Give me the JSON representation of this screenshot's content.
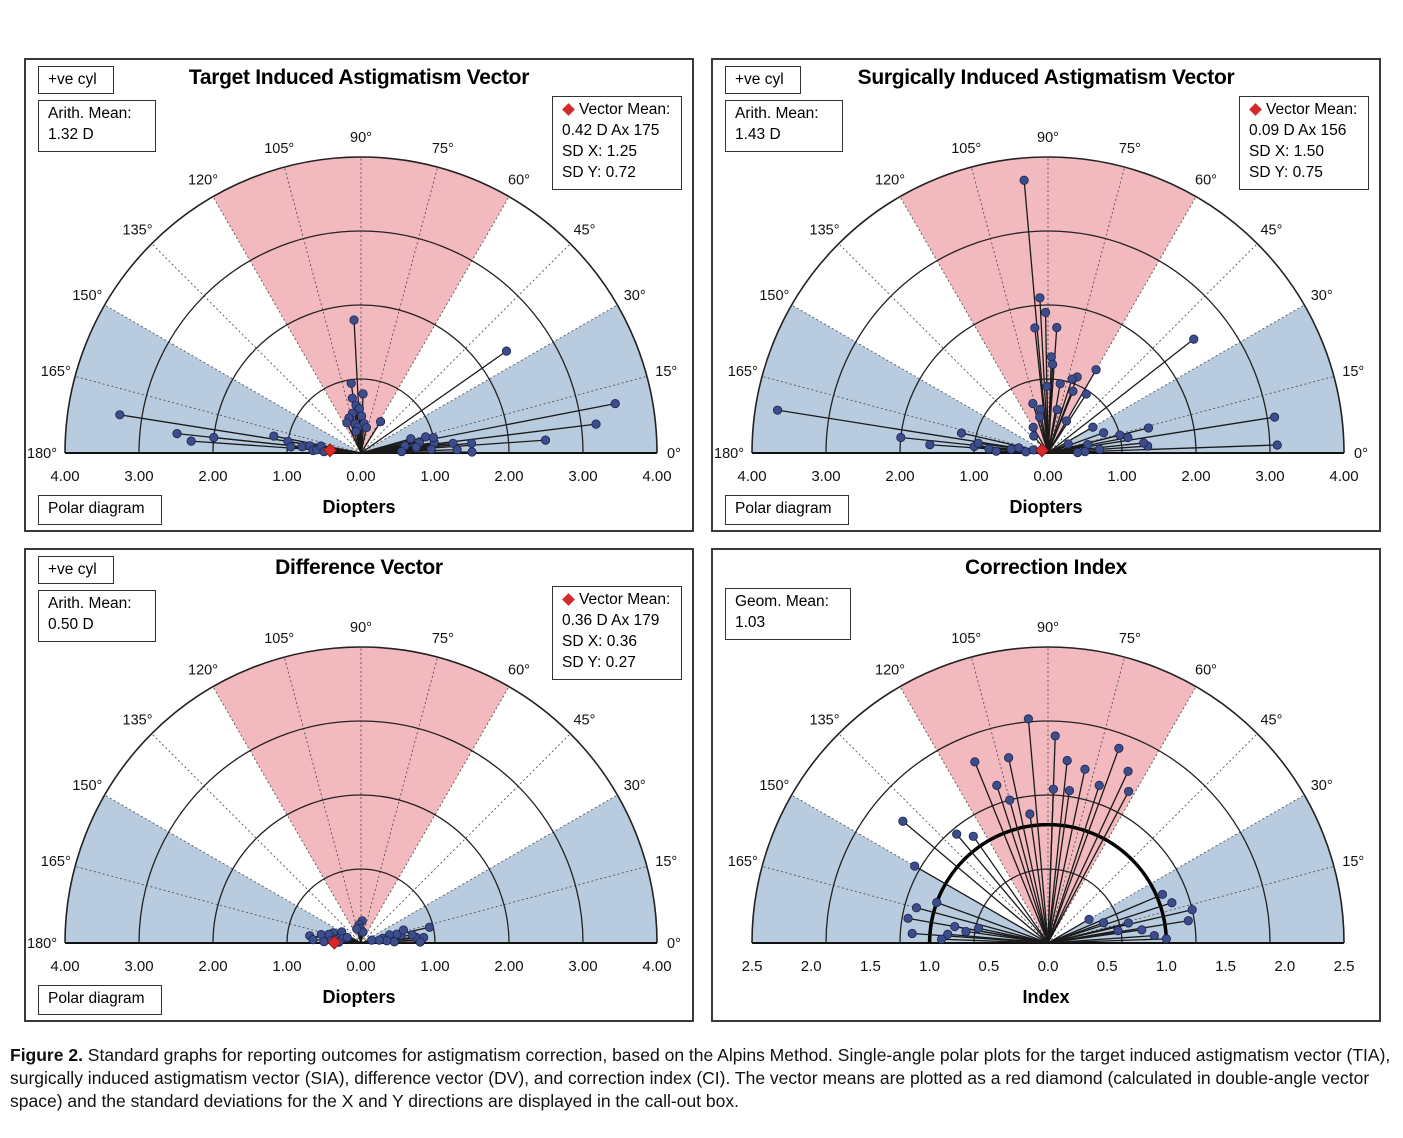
{
  "colors": {
    "red_sector": "#f2b9be",
    "blue_sector": "#b9cbdf",
    "point_fill": "#3d4d8c",
    "vector_mean": "#d42a2a"
  },
  "chart_data": [
    {
      "type": "polar",
      "title": "Target Induced Astigmatism Vector",
      "xlabel": "Diopters",
      "cyl_label": "+ve cyl",
      "footer_label": "Polar diagram",
      "arith_mean_label": "Arith. Mean:",
      "arith_mean_value": "1.32 D",
      "vector_mean": {
        "label": "Vector Mean:",
        "line1": "0.42 D Ax 175",
        "sd_x": "SD X: 1.25",
        "sd_y": "SD Y: 0.72",
        "magnitude": 0.42,
        "axis": 175
      },
      "angle_ticks": [
        "0°",
        "15°",
        "30°",
        "45°",
        "60°",
        "75°",
        "90°",
        "105°",
        "120°",
        "135°",
        "150°",
        "165°",
        "180°"
      ],
      "x_ticks": [
        "4.00",
        "3.00",
        "2.00",
        "1.00",
        "0.00",
        "1.00",
        "2.00",
        "3.00",
        "4.00"
      ],
      "rmax": 4,
      "red_sector": [
        60,
        120
      ],
      "blue_sectors": [
        [
          0,
          30
        ],
        [
          150,
          180
        ]
      ],
      "points": [
        [
          3.2,
          7
        ],
        [
          2.4,
          35
        ],
        [
          3.3,
          171
        ],
        [
          2.5,
          174
        ],
        [
          2.3,
          176
        ],
        [
          2.0,
          174
        ],
        [
          1.2,
          169
        ],
        [
          1.0,
          171
        ],
        [
          0.95,
          175
        ],
        [
          0.8,
          174
        ],
        [
          0.7,
          172
        ],
        [
          0.65,
          177
        ],
        [
          0.6,
          176
        ],
        [
          0.55,
          170
        ],
        [
          0.5,
          178
        ],
        [
          1.8,
          93
        ],
        [
          0.95,
          98
        ],
        [
          0.8,
          88
        ],
        [
          0.75,
          99
        ],
        [
          0.65,
          96
        ],
        [
          0.6,
          92
        ],
        [
          0.5,
          89
        ],
        [
          0.4,
          101
        ],
        [
          0.35,
          97
        ],
        [
          0.4,
          84
        ],
        [
          0.55,
          102
        ],
        [
          0.5,
          109
        ],
        [
          0.45,
          115
        ],
        [
          0.35,
          78
        ],
        [
          0.3,
          103
        ],
        [
          0.5,
          58
        ],
        [
          3.5,
          11
        ],
        [
          2.5,
          4
        ],
        [
          1.5,
          5
        ],
        [
          1.25,
          6
        ],
        [
          1.0,
          8
        ],
        [
          1.0,
          12
        ],
        [
          0.95,
          3
        ],
        [
          0.8,
          10
        ],
        [
          0.75,
          6
        ],
        [
          0.6,
          9
        ],
        [
          0.55,
          2
        ],
        [
          1.3,
          2
        ],
        [
          1.5,
          0.5
        ],
        [
          0.9,
          14
        ],
        [
          0.7,
          16
        ]
      ],
      "mean_circle": null
    },
    {
      "type": "polar",
      "title": "Surgically Induced Astigmatism Vector",
      "xlabel": "Diopters",
      "cyl_label": "+ve cyl",
      "footer_label": "Polar diagram",
      "arith_mean_label": "Arith. Mean:",
      "arith_mean_value": "1.43 D",
      "vector_mean": {
        "label": "Vector Mean:",
        "line1": "0.09 D Ax 156",
        "sd_x": "SD X: 1.50",
        "sd_y": "SD Y: 0.75",
        "magnitude": 0.09,
        "axis": 156
      },
      "angle_ticks": [
        "0°",
        "15°",
        "30°",
        "45°",
        "60°",
        "75°",
        "90°",
        "105°",
        "120°",
        "135°",
        "150°",
        "165°",
        "180°"
      ],
      "x_ticks": [
        "4.00",
        "3.00",
        "2.00",
        "1.00",
        "0.00",
        "1.00",
        "2.00",
        "3.00",
        "4.00"
      ],
      "rmax": 4,
      "red_sector": [
        60,
        120
      ],
      "blue_sectors": [
        [
          0,
          30
        ],
        [
          150,
          180
        ]
      ],
      "points": [
        [
          3.7,
          95
        ],
        [
          2.5,
          38
        ],
        [
          3.7,
          171
        ],
        [
          2.0,
          174
        ],
        [
          1.6,
          176
        ],
        [
          1.2,
          167
        ],
        [
          1.0,
          175
        ],
        [
          0.95,
          172
        ],
        [
          0.8,
          176
        ],
        [
          0.7,
          178
        ],
        [
          0.5,
          174
        ],
        [
          0.4,
          170
        ],
        [
          0.3,
          177
        ],
        [
          0.2,
          168
        ],
        [
          2.1,
          93
        ],
        [
          1.9,
          91
        ],
        [
          1.7,
          96
        ],
        [
          1.7,
          86
        ],
        [
          1.3,
          88
        ],
        [
          1.2,
          87
        ],
        [
          0.95,
          80
        ],
        [
          0.9,
          91
        ],
        [
          0.7,
          107
        ],
        [
          0.6,
          78
        ],
        [
          0.6,
          100
        ],
        [
          0.5,
          103
        ],
        [
          1.1,
          69
        ],
        [
          1.05,
          72
        ],
        [
          0.9,
          68
        ],
        [
          1.3,
          60
        ],
        [
          0.95,
          57
        ],
        [
          0.5,
          60
        ],
        [
          0.4,
          120
        ],
        [
          0.3,
          130
        ],
        [
          3.1,
          9
        ],
        [
          3.1,
          2
        ],
        [
          1.35,
          4
        ],
        [
          1.3,
          6
        ],
        [
          1.1,
          11
        ],
        [
          1.0,
          14
        ],
        [
          0.8,
          20
        ],
        [
          0.7,
          4
        ],
        [
          0.55,
          12
        ],
        [
          0.5,
          2
        ],
        [
          0.4,
          1
        ],
        [
          1.4,
          14
        ],
        [
          0.7,
          30
        ],
        [
          0.3,
          24
        ]
      ],
      "mean_circle": null
    },
    {
      "type": "polar",
      "title": "Difference Vector",
      "xlabel": "Diopters",
      "cyl_label": "+ve cyl",
      "footer_label": "Polar diagram",
      "arith_mean_label": "Arith. Mean:",
      "arith_mean_value": "0.50 D",
      "vector_mean": {
        "label": "Vector Mean:",
        "line1": "0.36 D Ax 179",
        "sd_x": "SD X: 0.36",
        "sd_y": "SD Y: 0.27",
        "magnitude": 0.36,
        "axis": 179
      },
      "angle_ticks": [
        "0°",
        "15°",
        "30°",
        "45°",
        "60°",
        "75°",
        "90°",
        "105°",
        "120°",
        "135°",
        "150°",
        "165°",
        "180°"
      ],
      "x_ticks": [
        "4.00",
        "3.00",
        "2.00",
        "1.00",
        "0.00",
        "1.00",
        "2.00",
        "3.00",
        "4.00"
      ],
      "rmax": 4,
      "red_sector": [
        60,
        120
      ],
      "blue_sectors": [
        [
          0,
          30
        ],
        [
          150,
          180
        ]
      ],
      "points": [
        [
          0.8,
          3
        ],
        [
          0.75,
          6
        ],
        [
          0.7,
          9
        ],
        [
          0.55,
          11
        ],
        [
          0.5,
          14
        ],
        [
          0.4,
          16
        ],
        [
          0.3,
          12
        ],
        [
          0.6,
          17
        ],
        [
          0.45,
          2
        ],
        [
          0.85,
          5
        ],
        [
          0.95,
          13
        ],
        [
          0.8,
          1
        ],
        [
          0.35,
          5
        ],
        [
          0.25,
          9
        ],
        [
          0.15,
          15
        ],
        [
          0.3,
          87
        ],
        [
          0.25,
          96
        ],
        [
          0.2,
          93
        ],
        [
          0.15,
          80
        ],
        [
          0.2,
          107
        ],
        [
          0.3,
          150
        ],
        [
          0.4,
          160
        ],
        [
          0.45,
          165
        ],
        [
          0.55,
          168
        ],
        [
          0.7,
          172
        ],
        [
          0.65,
          176
        ],
        [
          0.5,
          178
        ],
        [
          0.35,
          172
        ],
        [
          0.25,
          165
        ],
        [
          0.2,
          158
        ],
        [
          0.4,
          175
        ],
        [
          0.3,
          178
        ]
      ],
      "mean_circle": null
    },
    {
      "type": "polar",
      "title": "Correction Index",
      "xlabel": "Index",
      "cyl_label": "",
      "footer_label": "",
      "arith_mean_label": "Geom. Mean:",
      "arith_mean_value": "1.03",
      "vector_mean": null,
      "angle_ticks": [
        "15°",
        "30°",
        "45°",
        "60°",
        "75°",
        "90°",
        "105°",
        "120°",
        "135°",
        "150°",
        "165°"
      ],
      "x_ticks": [
        "2.5",
        "2.0",
        "1.5",
        "1.0",
        "0.5",
        "0.0",
        "0.5",
        "1.0",
        "1.5",
        "2.0",
        "2.5"
      ],
      "rmax": 2.5,
      "red_sector": [
        60,
        120
      ],
      "blue_sectors": [
        [
          0,
          30
        ],
        [
          150,
          180
        ]
      ],
      "points": [
        [
          1.6,
          140
        ],
        [
          1.3,
          150
        ],
        [
          1.9,
          95
        ],
        [
          1.75,
          88
        ],
        [
          1.55,
          84
        ],
        [
          1.3,
          88
        ],
        [
          1.65,
          112
        ],
        [
          1.4,
          108
        ],
        [
          1.75,
          70
        ],
        [
          1.6,
          65
        ],
        [
          1.45,
          62
        ],
        [
          1.4,
          72
        ],
        [
          1.6,
          102
        ],
        [
          1.25,
          105
        ],
        [
          1.1,
          98
        ],
        [
          1.5,
          78
        ],
        [
          1.3,
          82
        ],
        [
          1.1,
          125
        ],
        [
          1.2,
          130
        ],
        [
          1.0,
          160
        ],
        [
          1.15,
          165
        ],
        [
          0.8,
          170
        ],
        [
          0.7,
          172
        ],
        [
          0.85,
          175
        ],
        [
          1.2,
          170
        ],
        [
          1.15,
          176
        ],
        [
          0.9,
          178
        ],
        [
          0.6,
          168
        ],
        [
          1.25,
          13
        ],
        [
          1.1,
          18
        ],
        [
          1.2,
          9
        ],
        [
          1.05,
          23
        ],
        [
          0.8,
          8
        ],
        [
          0.7,
          14
        ],
        [
          0.9,
          4
        ],
        [
          1.0,
          2
        ],
        [
          0.6,
          10
        ],
        [
          0.5,
          20
        ],
        [
          0.4,
          30
        ]
      ],
      "mean_circle": 1.0
    }
  ],
  "caption": {
    "figure_label": "Figure 2.",
    "text": " Standard graphs for reporting outcomes for astigmatism correction, based on the Alpins Method. Single-angle polar plots for the target induced astigmatism vector (TIA), surgically induced astigmatism vector (SIA), difference vector (DV), and correction index (CI). The vector means are plotted as a red diamond (calculated in double-angle vector space) and the standard deviations for the X and Y directions are displayed in the call-out box."
  }
}
